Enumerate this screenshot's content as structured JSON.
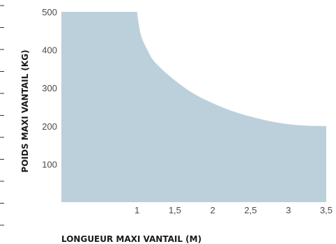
{
  "chart_data": {
    "type": "area",
    "title": "",
    "xlabel": "LONGUEUR MAXI VANTAIL (M)",
    "ylabel": "POIDS MAXI VANTAIL (KG)",
    "xlim": [
      0,
      3.5
    ],
    "ylim": [
      0,
      500
    ],
    "x_ticks": [
      1,
      1.5,
      2,
      2.5,
      3,
      3.5
    ],
    "x_tick_labels": [
      "1",
      "1,5",
      "2",
      "2,5",
      "3",
      "3,5"
    ],
    "y_ticks": [
      100,
      200,
      300,
      400,
      500
    ],
    "y_tick_labels": [
      "100",
      "200",
      "300",
      "400",
      "500"
    ],
    "grid": false,
    "legend": "none",
    "series": [
      {
        "x": [
          0,
          1,
          1.05,
          1.15,
          1.25,
          1.5,
          1.75,
          2,
          2.25,
          2.5,
          2.75,
          3,
          3.25,
          3.5
        ],
        "y": [
          500,
          500,
          440,
          395,
          365,
          320,
          285,
          260,
          240,
          225,
          213,
          205,
          201,
          200
        ],
        "color": "#bcd0dc"
      }
    ]
  }
}
